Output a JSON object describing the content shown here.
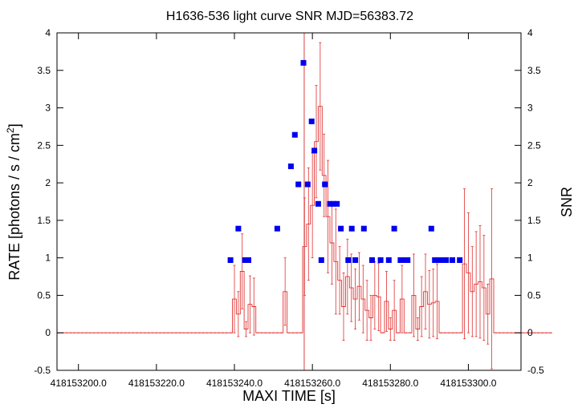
{
  "chart_data": {
    "type": "scatter",
    "title": "H1636-536 light curve  SNR MJD=56383.72",
    "xlabel": "MAXI TIME [s]",
    "ylabel": "RATE [photons / s / cm",
    "ylabel_sup": "2",
    "ylabel_end": "]",
    "y2label": "SNR",
    "xlim": [
      418153194.5,
      418153313.5
    ],
    "ylim": [
      -0.5,
      4
    ],
    "y2lim": [
      -0.5,
      4
    ],
    "x_ticks": [
      {
        "value": 418153200,
        "label": "418153200.0"
      },
      {
        "value": 418153220,
        "label": "418153220.0"
      },
      {
        "value": 418153240,
        "label": "418153240.0"
      },
      {
        "value": 418153260,
        "label": "418153260.0"
      },
      {
        "value": 418153280,
        "label": "418153280.0"
      },
      {
        "value": 418153300,
        "label": "418153300.0"
      }
    ],
    "y_ticks": [
      "-0.5",
      "0",
      "0.5",
      "1",
      "1.5",
      "2",
      "2.5",
      "3",
      "3.5",
      "4"
    ],
    "y2_ticks": [
      "-0.5",
      "0",
      "0.5",
      "1",
      "1.5",
      "2",
      "2.5",
      "3",
      "3.5",
      "4"
    ],
    "marker_time": 418153257.9,
    "series": [
      {
        "kind": "rate",
        "color": "#e03030",
        "x_start": 418153194.5,
        "x_step": 1,
        "values": [
          0,
          0,
          0,
          0,
          0,
          0,
          0,
          0,
          0,
          0,
          0,
          0,
          0,
          0,
          0,
          0,
          0,
          0,
          0,
          0,
          0,
          0,
          0,
          0,
          0,
          0,
          0,
          0,
          0,
          0,
          0,
          0,
          0,
          0,
          0,
          0,
          0,
          0,
          0,
          0,
          0,
          0,
          0,
          0,
          0,
          0.45,
          0.25,
          0.82,
          0.05,
          0.38,
          0.35,
          0,
          0,
          0,
          0,
          0,
          0,
          0,
          0.55,
          0,
          0,
          0,
          0,
          1.15,
          1.45,
          1.7,
          2.55,
          3.02,
          2.1,
          1.55,
          1.2,
          0.95,
          0.7,
          0.35,
          0.75,
          0.6,
          0.45,
          0.62,
          0.45,
          0.3,
          0.2,
          0.5,
          0.48,
          0,
          0.42,
          0.05,
          0.3,
          0,
          0.45,
          0,
          0,
          0.5,
          0.05,
          0.35,
          0.55,
          0.38,
          0.4,
          0.42,
          0,
          0,
          0,
          0,
          0,
          0,
          0.92,
          0.8,
          0.55,
          0.65,
          0.68,
          0.6,
          0.25,
          0.72,
          0,
          0,
          0,
          0,
          0,
          0,
          0,
          0,
          0,
          0,
          0,
          0,
          0,
          0,
          0
        ],
        "errors": [
          0,
          0,
          0,
          0,
          0,
          0,
          0,
          0,
          0,
          0,
          0,
          0,
          0,
          0,
          0,
          0,
          0,
          0,
          0,
          0,
          0,
          0,
          0,
          0,
          0,
          0,
          0,
          0,
          0,
          0,
          0,
          0,
          0,
          0,
          0,
          0,
          0,
          0,
          0,
          0,
          0,
          0,
          0,
          0,
          0,
          0.45,
          0.3,
          0.5,
          0.1,
          0.38,
          0.38,
          0,
          0,
          0,
          0,
          0,
          0,
          0,
          0.45,
          0,
          0,
          0,
          0,
          0.65,
          0.75,
          0.7,
          0.75,
          0.85,
          0.55,
          0.75,
          0.55,
          0.7,
          0.45,
          0.45,
          0.5,
          0.45,
          0.4,
          0.45,
          0.45,
          0.4,
          0.3,
          0.45,
          0.45,
          0,
          0.4,
          0.15,
          0.4,
          0,
          0.45,
          0,
          0,
          0.55,
          0.15,
          0.4,
          0.5,
          0.45,
          0.45,
          0.5,
          0,
          0,
          0,
          0,
          0,
          0,
          1.0,
          0.8,
          0.6,
          0.7,
          0.75,
          0.7,
          0.4,
          1.2,
          0,
          0,
          0,
          0,
          0,
          0,
          0,
          0,
          0,
          0,
          0,
          0,
          0,
          0,
          0
        ]
      },
      {
        "kind": "snr",
        "color": "#0000ee",
        "points": [
          [
            418153239.0,
            0.97
          ],
          [
            418153241.0,
            1.39
          ],
          [
            418153242.7,
            0.97
          ],
          [
            418153243.6,
            0.97
          ],
          [
            418153251.0,
            1.39
          ],
          [
            418153254.5,
            2.22
          ],
          [
            418153255.5,
            2.64
          ],
          [
            418153256.4,
            1.98
          ],
          [
            418153257.7,
            3.6
          ],
          [
            418153258.8,
            1.98
          ],
          [
            418153259.8,
            2.82
          ],
          [
            418153260.5,
            2.43
          ],
          [
            418153261.5,
            1.72
          ],
          [
            418153262.3,
            0.97
          ],
          [
            418153263.2,
            1.98
          ],
          [
            418153264.5,
            1.72
          ],
          [
            418153265.4,
            1.72
          ],
          [
            418153266.3,
            1.72
          ],
          [
            418153267.3,
            1.39
          ],
          [
            418153269.2,
            0.97
          ],
          [
            418153270.1,
            1.39
          ],
          [
            418153271.0,
            0.97
          ],
          [
            418153273.2,
            1.39
          ],
          [
            418153275.3,
            0.97
          ],
          [
            418153277.5,
            0.97
          ],
          [
            418153279.6,
            0.97
          ],
          [
            418153281.0,
            1.39
          ],
          [
            418153282.6,
            0.97
          ],
          [
            418153283.5,
            0.97
          ],
          [
            418153284.4,
            0.97
          ],
          [
            418153290.5,
            1.39
          ],
          [
            418153291.4,
            0.97
          ],
          [
            418153292.3,
            0.97
          ],
          [
            418153293.3,
            0.97
          ],
          [
            418153294.3,
            0.97
          ],
          [
            418153295.9,
            0.97
          ],
          [
            418153297.8,
            0.97
          ]
        ]
      }
    ]
  }
}
